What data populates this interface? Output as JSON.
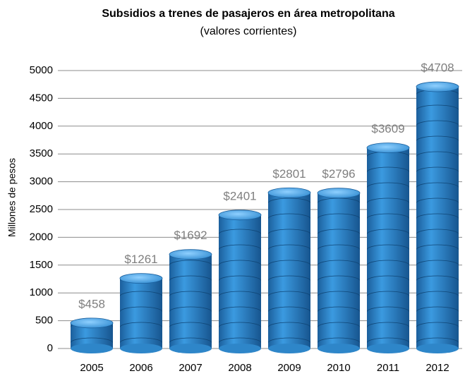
{
  "chart_data": {
    "type": "bar",
    "title": "Subsidios a trenes de pasajeros en área metropolitana",
    "subtitle": "(valores corrientes)",
    "y_axis_label": "Millones de pesos",
    "categories": [
      "2005",
      "2006",
      "2007",
      "2008",
      "2009",
      "2010",
      "2011",
      "2012"
    ],
    "values": [
      458,
      1261,
      1692,
      2401,
      2801,
      2796,
      3609,
      4708
    ],
    "value_labels": [
      "$458",
      "$1261",
      "$1692",
      "$2401",
      "$2801",
      "$2796",
      "$3609",
      "$4708"
    ],
    "color": "#2e86c9",
    "ylim": [
      0,
      5000
    ],
    "yticks": [
      0,
      500,
      1000,
      1500,
      2000,
      2500,
      3000,
      3500,
      4000,
      4500,
      5000
    ],
    "grid": true
  }
}
